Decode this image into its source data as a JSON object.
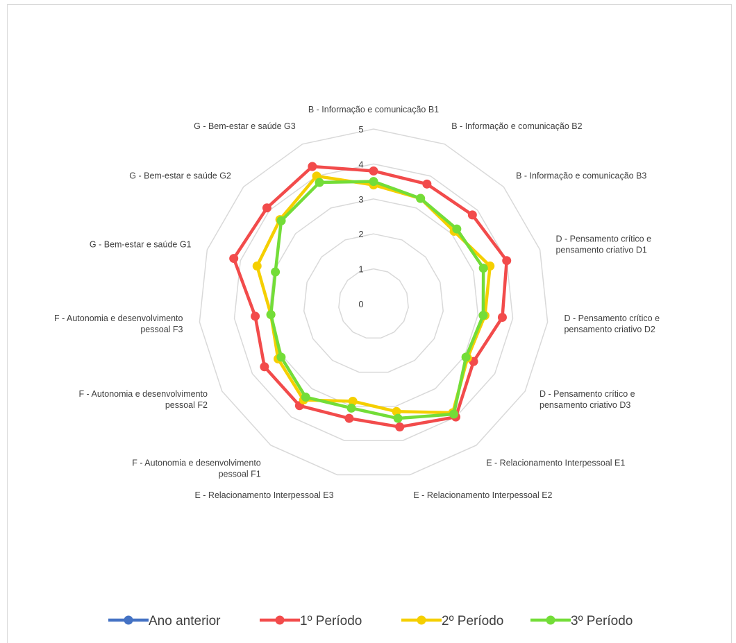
{
  "chart_data": {
    "type": "radar",
    "categories": [
      "B - Informação e comunicação B1",
      "B - Informação e comunicação B2",
      "B - Informação e comunicação B3",
      "D - Pensamento crítico e pensamento criativo D1",
      "D - Pensamento crítico e pensamento criativo D2",
      "D - Pensamento crítico e pensamento criativo D3",
      "E - Relacionamento Interpessoal E1",
      "E - Relacionamento Interpessoal E2",
      "E - Relacionamento Interpessoal E3",
      "F - Autonomia e desenvolvimento pessoal F1",
      "F - Autonomia e desenvolvimento pessoal F2",
      "F - Autonomia e desenvolvimento pessoal F3",
      "G - Bem-estar e saúde G1",
      "G - Bem-estar e saúde G2",
      "G - Bem-estar e saúde G3"
    ],
    "rlim": [
      0,
      5
    ],
    "ticks": [
      "0",
      "1",
      "2",
      "3",
      "4",
      "5"
    ],
    "grid": true,
    "legend_position": "bottom",
    "series": [
      {
        "name": "Ano anterior",
        "color": "#4472c4",
        "values": [
          0,
          0,
          0,
          0,
          0,
          0,
          0,
          0,
          0,
          0,
          0,
          0,
          0,
          0,
          0
        ]
      },
      {
        "name": "1º Período",
        "color": "#f24b4b",
        "values": [
          3.8,
          3.75,
          3.8,
          4.0,
          3.7,
          3.3,
          4.0,
          3.6,
          3.35,
          3.6,
          3.6,
          3.4,
          4.2,
          4.1,
          4.3
        ]
      },
      {
        "name": "2º Período",
        "color": "#f5cf00",
        "values": [
          3.4,
          3.3,
          3.1,
          3.5,
          3.2,
          3.1,
          3.85,
          3.15,
          2.85,
          3.4,
          3.15,
          2.95,
          3.5,
          3.6,
          4.0
        ]
      },
      {
        "name": "3º Período",
        "color": "#73dd38",
        "values": [
          3.5,
          3.3,
          3.2,
          3.3,
          3.15,
          3.05,
          3.9,
          3.35,
          3.05,
          3.3,
          3.05,
          2.95,
          2.95,
          3.55,
          3.8
        ]
      }
    ]
  }
}
